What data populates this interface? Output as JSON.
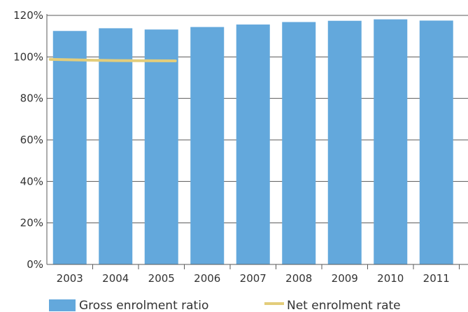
{
  "chart_data": {
    "type": "bar",
    "title": "",
    "xlabel": "",
    "ylabel": "",
    "categories": [
      "2003",
      "2004",
      "2005",
      "2006",
      "2007",
      "2008",
      "2009",
      "2010",
      "2011"
    ],
    "ylim": [
      0,
      120
    ],
    "yticks": [
      0,
      20,
      40,
      60,
      80,
      100,
      120
    ],
    "ytick_labels": [
      "0%",
      "20%",
      "40%",
      "60%",
      "80%",
      "100%",
      "120%"
    ],
    "grid": true,
    "legend_position": "bottom",
    "series": [
      {
        "name": "Gross enrolment ratio",
        "type": "bar",
        "color": "#63a8dc",
        "values": [
          112.5,
          113.8,
          113.2,
          114.4,
          115.6,
          116.8,
          117.4,
          118.1,
          117.5
        ]
      },
      {
        "name": "Net enrolment rate",
        "type": "line",
        "color": "#e3cd7b",
        "values": [
          98.8,
          98.2,
          98.1,
          null,
          null,
          null,
          null,
          null,
          null
        ]
      }
    ]
  }
}
